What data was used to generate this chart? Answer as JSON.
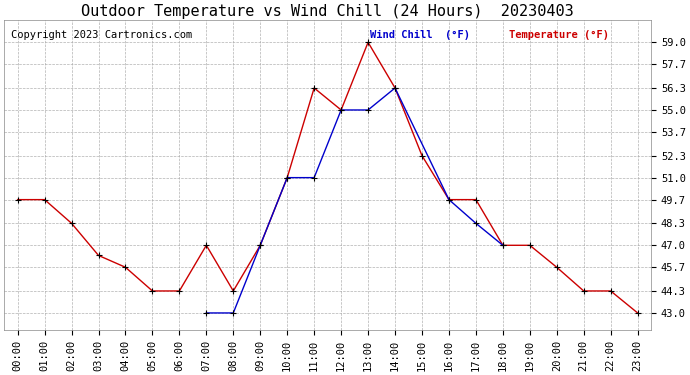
{
  "title": "Outdoor Temperature vs Wind Chill (24 Hours)  20230403",
  "copyright": "Copyright 2023 Cartronics.com",
  "legend_wind_chill": "Wind Chill  (°F)",
  "legend_temperature": "Temperature (°F)",
  "x_labels": [
    "00:00",
    "01:00",
    "02:00",
    "03:00",
    "04:00",
    "05:00",
    "06:00",
    "07:00",
    "08:00",
    "09:00",
    "10:00",
    "11:00",
    "12:00",
    "13:00",
    "14:00",
    "15:00",
    "16:00",
    "17:00",
    "18:00",
    "19:00",
    "20:00",
    "21:00",
    "22:00",
    "23:00"
  ],
  "temperature": [
    49.7,
    49.7,
    48.3,
    46.4,
    45.7,
    44.3,
    44.3,
    47.0,
    44.3,
    47.0,
    51.0,
    56.3,
    55.0,
    59.0,
    56.3,
    52.3,
    49.7,
    49.7,
    47.0,
    47.0,
    45.7,
    44.3,
    44.3,
    43.0
  ],
  "wind_chill_x": [
    7,
    8,
    9,
    10,
    11,
    12,
    13,
    14,
    16,
    17,
    18
  ],
  "wind_chill_y": [
    43.0,
    43.0,
    47.0,
    51.0,
    51.0,
    55.0,
    55.0,
    56.3,
    49.7,
    48.3,
    47.0
  ],
  "ylim_min": 42.0,
  "ylim_max": 60.3,
  "yticks": [
    43.0,
    44.3,
    45.7,
    47.0,
    48.3,
    49.7,
    51.0,
    52.3,
    53.7,
    55.0,
    56.3,
    57.7,
    59.0
  ],
  "temp_color": "#cc0000",
  "wind_color": "#0000cc",
  "grid_color": "#aaaaaa",
  "bg_color": "#ffffff",
  "title_fontsize": 11,
  "label_fontsize": 7.5,
  "copyright_fontsize": 7.5
}
